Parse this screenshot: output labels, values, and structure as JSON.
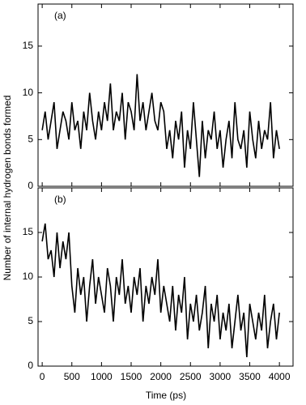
{
  "chart_data": [
    {
      "type": "line",
      "panel_label": "(a)",
      "color": "#000000",
      "x": [
        0,
        50,
        100,
        150,
        200,
        250,
        300,
        350,
        400,
        450,
        500,
        550,
        600,
        650,
        700,
        750,
        800,
        850,
        900,
        950,
        1000,
        1050,
        1100,
        1150,
        1200,
        1250,
        1300,
        1350,
        1400,
        1450,
        1500,
        1550,
        1600,
        1650,
        1700,
        1750,
        1800,
        1850,
        1900,
        1950,
        2000,
        2050,
        2100,
        2150,
        2200,
        2250,
        2300,
        2350,
        2400,
        2450,
        2500,
        2550,
        2600,
        2650,
        2700,
        2750,
        2800,
        2850,
        2900,
        2950,
        3000,
        3050,
        3100,
        3150,
        3200,
        3250,
        3300,
        3350,
        3400,
        3450,
        3500,
        3550,
        3600,
        3650,
        3700,
        3750,
        3800,
        3850,
        3900,
        3950,
        4000
      ],
      "values": [
        6,
        8,
        5,
        7,
        9,
        4,
        6,
        8,
        7,
        5,
        9,
        6,
        7,
        4,
        8,
        6,
        10,
        7,
        5,
        8,
        6,
        9,
        7,
        11,
        6,
        8,
        7,
        10,
        5,
        9,
        8,
        6,
        12,
        7,
        9,
        6,
        8,
        10,
        7,
        6,
        9,
        8,
        4,
        6,
        3,
        7,
        5,
        8,
        2,
        6,
        4,
        9,
        5,
        1,
        7,
        3,
        6,
        5,
        8,
        4,
        6,
        2,
        5,
        7,
        3,
        9,
        5,
        4,
        6,
        2,
        8,
        5,
        3,
        7,
        4,
        6,
        5,
        9,
        3,
        6,
        4
      ],
      "xlim": [
        -70,
        4230
      ],
      "xticks": [
        0,
        500,
        1000,
        1500,
        2000,
        2500,
        3000,
        3500,
        4000
      ],
      "ylim": [
        0,
        19.5
      ],
      "yticks": [
        0,
        5,
        10,
        15
      ]
    },
    {
      "type": "line",
      "panel_label": "(b)",
      "color": "#000000",
      "x": [
        0,
        50,
        100,
        150,
        200,
        250,
        300,
        350,
        400,
        450,
        500,
        550,
        600,
        650,
        700,
        750,
        800,
        850,
        900,
        950,
        1000,
        1050,
        1100,
        1150,
        1200,
        1250,
        1300,
        1350,
        1400,
        1450,
        1500,
        1550,
        1600,
        1650,
        1700,
        1750,
        1800,
        1850,
        1900,
        1950,
        2000,
        2050,
        2100,
        2150,
        2200,
        2250,
        2300,
        2350,
        2400,
        2450,
        2500,
        2550,
        2600,
        2650,
        2700,
        2750,
        2800,
        2850,
        2900,
        2950,
        3000,
        3050,
        3100,
        3150,
        3200,
        3250,
        3300,
        3350,
        3400,
        3450,
        3500,
        3550,
        3600,
        3650,
        3700,
        3750,
        3800,
        3850,
        3900,
        3950,
        4000
      ],
      "values": [
        14,
        16,
        12,
        13,
        10,
        15,
        11,
        14,
        12,
        15,
        9,
        6,
        11,
        8,
        10,
        5,
        9,
        12,
        7,
        10,
        8,
        6,
        11,
        9,
        5,
        10,
        8,
        12,
        7,
        9,
        6,
        10,
        8,
        11,
        5,
        9,
        7,
        10,
        8,
        12,
        6,
        9,
        7,
        5,
        9,
        4,
        8,
        6,
        10,
        3,
        7,
        5,
        8,
        4,
        6,
        9,
        2,
        7,
        5,
        8,
        3,
        6,
        4,
        7,
        2,
        5,
        8,
        4,
        6,
        1,
        7,
        5,
        3,
        6,
        4,
        8,
        2,
        5,
        7,
        3,
        6
      ],
      "xlim": [
        -70,
        4230
      ],
      "xticks": [
        0,
        500,
        1000,
        1500,
        2000,
        2500,
        3000,
        3500,
        4000
      ],
      "ylim": [
        0,
        20
      ],
      "yticks": [
        0,
        5,
        10,
        15
      ],
      "x_label": "Time (ps)",
      "y_label": "Number of internal hydrogen bonds formed"
    }
  ]
}
